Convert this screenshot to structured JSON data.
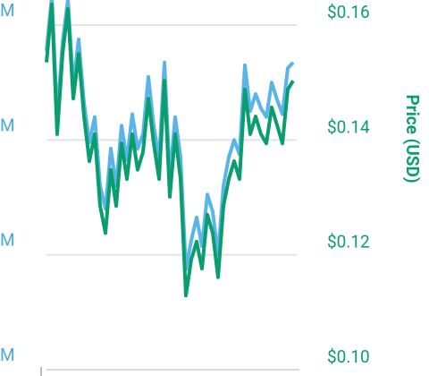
{
  "chart_data": {
    "type": "line",
    "y_axis_title": "Price (USD)",
    "left_tick_labels": [
      "M",
      "M",
      "M",
      "M"
    ],
    "ylim": [
      0.1,
      0.16
    ],
    "yticks": [
      {
        "value": 0.16,
        "label": "$0.16"
      },
      {
        "value": 0.14,
        "label": "$0.14"
      },
      {
        "value": 0.12,
        "label": "$0.12"
      },
      {
        "value": 0.1,
        "label": "$0.10"
      }
    ],
    "grid": true,
    "axis_color": "#0a9d6e",
    "left_axis_color": "#4aa8dc",
    "series": [
      {
        "color": "#5ab4e8",
        "values": [
          0.1555,
          0.165,
          0.144,
          0.157,
          0.1645,
          0.1495,
          0.1575,
          0.1465,
          0.1395,
          0.144,
          0.132,
          0.128,
          0.1385,
          0.132,
          0.1425,
          0.1365,
          0.1445,
          0.1385,
          0.141,
          0.151,
          0.1425,
          0.1365,
          0.1535,
          0.1335,
          0.144,
          0.137,
          0.1175,
          0.1225,
          0.1265,
          0.1215,
          0.1305,
          0.1275,
          0.12,
          0.132,
          0.137,
          0.14,
          0.1375,
          0.153,
          0.145,
          0.148,
          0.1455,
          0.144,
          0.15,
          0.147,
          0.1445,
          0.1525,
          0.1535
        ]
      },
      {
        "color": "#0a9d6e",
        "values": [
          0.1535,
          0.1636,
          0.141,
          0.155,
          0.1628,
          0.1472,
          0.155,
          0.1441,
          0.1363,
          0.141,
          0.1285,
          0.1238,
          0.1348,
          0.1285,
          0.1394,
          0.1332,
          0.141,
          0.1348,
          0.1379,
          0.1472,
          0.1394,
          0.1332,
          0.1503,
          0.1301,
          0.141,
          0.1332,
          0.1129,
          0.1192,
          0.1223,
          0.1176,
          0.127,
          0.1238,
          0.1161,
          0.1285,
          0.1332,
          0.1363,
          0.1332,
          0.1488,
          0.141,
          0.1441,
          0.141,
          0.1394,
          0.1457,
          0.1426,
          0.1394,
          0.1488,
          0.1503
        ]
      }
    ]
  }
}
